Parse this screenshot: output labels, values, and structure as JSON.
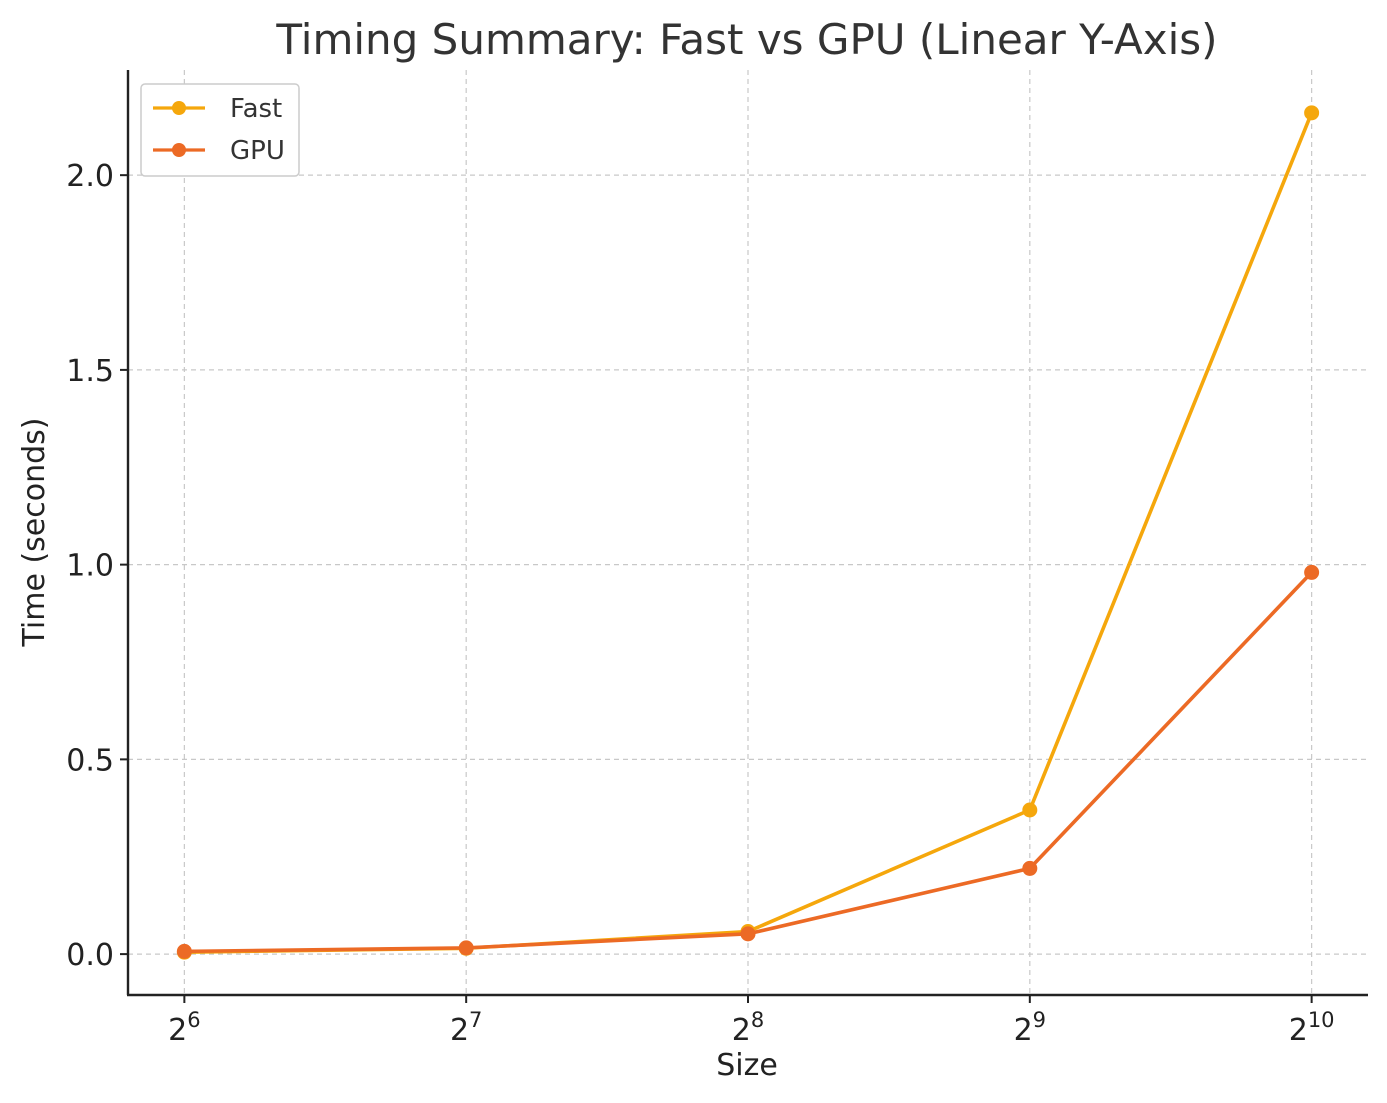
{
  "chart_data": {
    "type": "line",
    "title": "Timing Summary: Fast vs GPU (Linear Y-Axis)",
    "xlabel": "Size",
    "ylabel": "Time (seconds)",
    "x_scale": "log2",
    "x": [
      64,
      128,
      256,
      512,
      1024
    ],
    "x_tick_labels": [
      {
        "base": "2",
        "exp": "6"
      },
      {
        "base": "2",
        "exp": "7"
      },
      {
        "base": "2",
        "exp": "8"
      },
      {
        "base": "2",
        "exp": "9"
      },
      {
        "base": "2",
        "exp": "10"
      }
    ],
    "y_ticks": [
      0.0,
      0.5,
      1.0,
      1.5,
      2.0
    ],
    "y_tick_labels": [
      "0.0",
      "0.5",
      "1.0",
      "1.5",
      "2.0"
    ],
    "ylim": [
      -0.105,
      2.27
    ],
    "xlim_log2": [
      5.8,
      10.2
    ],
    "grid": true,
    "legend_position": "upper-left",
    "series": [
      {
        "name": "Fast",
        "color": "#f5a70c",
        "values": [
          0.005,
          0.015,
          0.058,
          0.37,
          2.16
        ]
      },
      {
        "name": "GPU",
        "color": "#ec6a25",
        "values": [
          0.007,
          0.016,
          0.052,
          0.22,
          0.98
        ]
      }
    ]
  }
}
